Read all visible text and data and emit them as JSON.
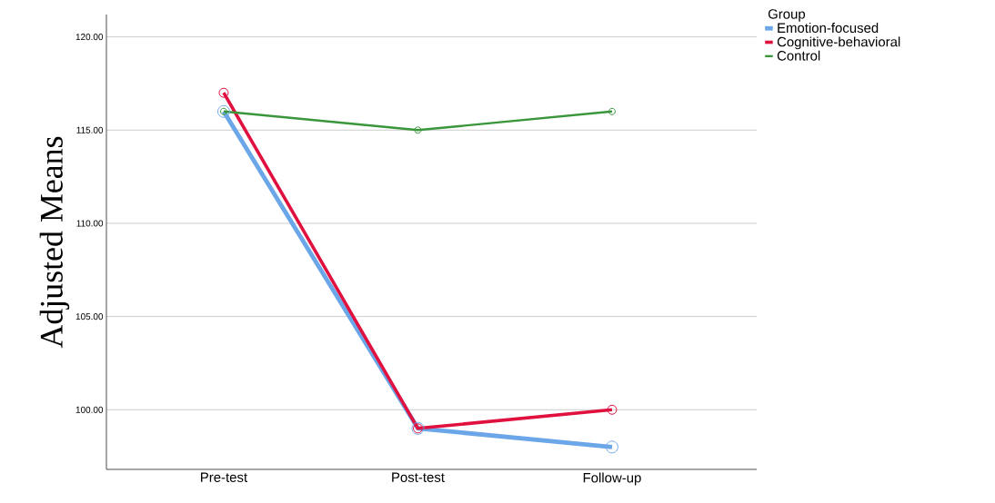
{
  "chart_data": {
    "type": "line",
    "ylabel": "Adjusted Means",
    "legend_title": "Group",
    "categories": [
      "Pre-test",
      "Post-test",
      "Follow-up"
    ],
    "series": [
      {
        "name": "Emotion-focused",
        "color": "#6aa6e8",
        "values": [
          116,
          99,
          98
        ]
      },
      {
        "name": "Cognitive-behavioral",
        "color": "#e0103f",
        "values": [
          117,
          99,
          100
        ]
      },
      {
        "name": "Control",
        "color": "#3a963a",
        "values": [
          116,
          115,
          116
        ]
      }
    ],
    "ylim": [
      96.8,
      121.2
    ],
    "yticks": [
      {
        "value": 100,
        "label": "100.00"
      },
      {
        "value": 105,
        "label": "105.00"
      },
      {
        "value": 110,
        "label": "110.00"
      },
      {
        "value": 115,
        "label": "115.00"
      },
      {
        "value": 120,
        "label": "120.00"
      }
    ],
    "grid": "y",
    "legend": "top right",
    "marker": "circle",
    "line_style": "solid"
  }
}
